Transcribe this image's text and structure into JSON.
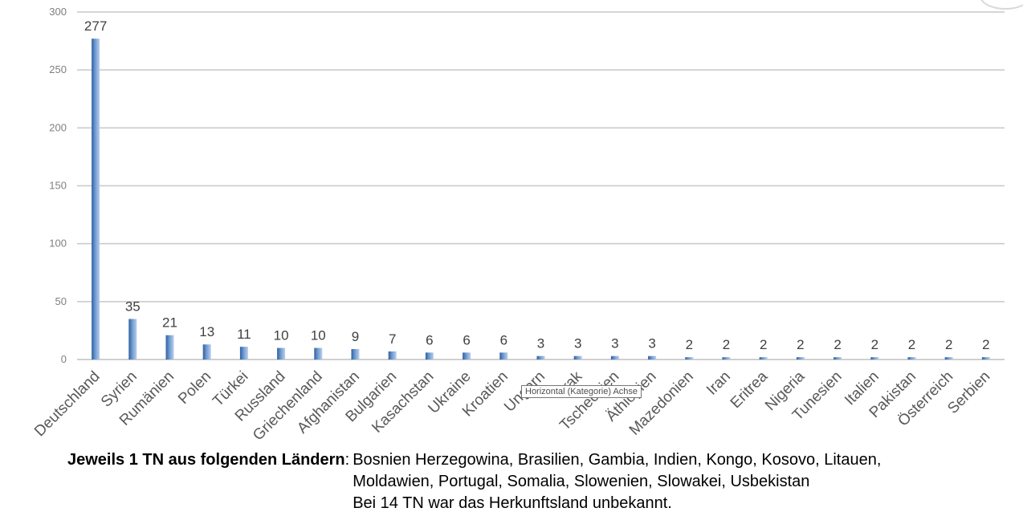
{
  "chart_data": {
    "type": "bar",
    "title": "",
    "xlabel": "",
    "ylabel": "",
    "ylim": [
      0,
      300
    ],
    "yticks": [
      0,
      50,
      100,
      150,
      200,
      250,
      300
    ],
    "grid": true,
    "legend": "none",
    "bar_color": "#4f81bd",
    "categories": [
      "Deutschland",
      "Syrien",
      "Rumänien",
      "Polen",
      "Türkei",
      "Russland",
      "Griechenland",
      "Afghanistan",
      "Bulgarien",
      "Kasachstan",
      "Ukraine",
      "Kroatien",
      "Ungarn",
      "Irak",
      "Tschechien",
      "Äthiopien",
      "Mazedonien",
      "Iran",
      "Eritrea",
      "Nigeria",
      "Tunesien",
      "Italien",
      "Pakistan",
      "Österreich",
      "Serbien"
    ],
    "values": [
      277,
      35,
      21,
      13,
      11,
      10,
      10,
      9,
      7,
      6,
      6,
      6,
      3,
      3,
      3,
      3,
      2,
      2,
      2,
      2,
      2,
      2,
      2,
      2,
      2
    ]
  },
  "tooltip": "Horizontal (Kategorie) Achse",
  "footnote": {
    "lead": "Jeweils 1 TN aus folgenden Ländern",
    "line1": "Bosnien Herzegowina, Brasilien, Gambia, Indien, Kongo, Kosovo, Litauen,",
    "line2": "Moldawien, Portugal, Somalia, Slowenien, Slowakei, Usbekistan",
    "line3": "Bei 14 TN war das Herkunftsland unbekannt."
  }
}
